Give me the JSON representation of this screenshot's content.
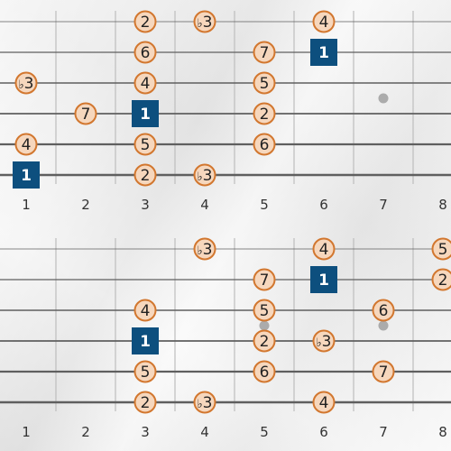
{
  "colors": {
    "string": "#5f5f5f",
    "fret": "#bdbdbd",
    "nut": "#707070",
    "note_fill": "#f6d7bd",
    "note_stroke": "#d2772f",
    "root_fill": "#0d4f7e",
    "root_text": "#ffffff",
    "note_text": "#222222",
    "fret_label": "#333333",
    "inlay": "#9a9a9a"
  },
  "icons": {
    "inlay": "fret-inlay-dot"
  },
  "diagrams": [
    {
      "name": "upper",
      "fret_labels": [
        "1",
        "2",
        "3",
        "4",
        "5",
        "6",
        "7",
        "8"
      ],
      "inlay_frets": [
        7
      ],
      "notes": [
        {
          "string": 1,
          "fret": 3,
          "label": "2"
        },
        {
          "string": 1,
          "fret": 4,
          "label": "b3"
        },
        {
          "string": 1,
          "fret": 6,
          "label": "4"
        },
        {
          "string": 2,
          "fret": 3,
          "label": "6"
        },
        {
          "string": 2,
          "fret": 5,
          "label": "7"
        },
        {
          "string": 2,
          "fret": 6,
          "label": "1",
          "root": true
        },
        {
          "string": 3,
          "fret": 1,
          "label": "b3"
        },
        {
          "string": 3,
          "fret": 3,
          "label": "4"
        },
        {
          "string": 3,
          "fret": 5,
          "label": "5"
        },
        {
          "string": 4,
          "fret": 2,
          "label": "7"
        },
        {
          "string": 4,
          "fret": 3,
          "label": "1",
          "root": true
        },
        {
          "string": 4,
          "fret": 5,
          "label": "2"
        },
        {
          "string": 5,
          "fret": 1,
          "label": "4"
        },
        {
          "string": 5,
          "fret": 3,
          "label": "5"
        },
        {
          "string": 5,
          "fret": 5,
          "label": "6"
        },
        {
          "string": 6,
          "fret": 1,
          "label": "1",
          "root": true
        },
        {
          "string": 6,
          "fret": 3,
          "label": "2"
        },
        {
          "string": 6,
          "fret": 4,
          "label": "b3"
        }
      ]
    },
    {
      "name": "lower",
      "fret_labels": [
        "1",
        "2",
        "3",
        "4",
        "5",
        "6",
        "7",
        "8"
      ],
      "inlay_frets": [
        5,
        7
      ],
      "notes": [
        {
          "string": 1,
          "fret": 4,
          "label": "b3"
        },
        {
          "string": 1,
          "fret": 6,
          "label": "4"
        },
        {
          "string": 1,
          "fret": 8,
          "label": "5"
        },
        {
          "string": 2,
          "fret": 5,
          "label": "7"
        },
        {
          "string": 2,
          "fret": 6,
          "label": "1",
          "root": true
        },
        {
          "string": 2,
          "fret": 8,
          "label": "2"
        },
        {
          "string": 3,
          "fret": 3,
          "label": "4"
        },
        {
          "string": 3,
          "fret": 5,
          "label": "5"
        },
        {
          "string": 3,
          "fret": 7,
          "label": "6"
        },
        {
          "string": 4,
          "fret": 3,
          "label": "1",
          "root": true
        },
        {
          "string": 4,
          "fret": 5,
          "label": "2"
        },
        {
          "string": 4,
          "fret": 6,
          "label": "b3"
        },
        {
          "string": 5,
          "fret": 3,
          "label": "5"
        },
        {
          "string": 5,
          "fret": 5,
          "label": "6"
        },
        {
          "string": 5,
          "fret": 7,
          "label": "7"
        },
        {
          "string": 6,
          "fret": 3,
          "label": "2"
        },
        {
          "string": 6,
          "fret": 4,
          "label": "b3"
        },
        {
          "string": 6,
          "fret": 6,
          "label": "4"
        }
      ]
    }
  ]
}
